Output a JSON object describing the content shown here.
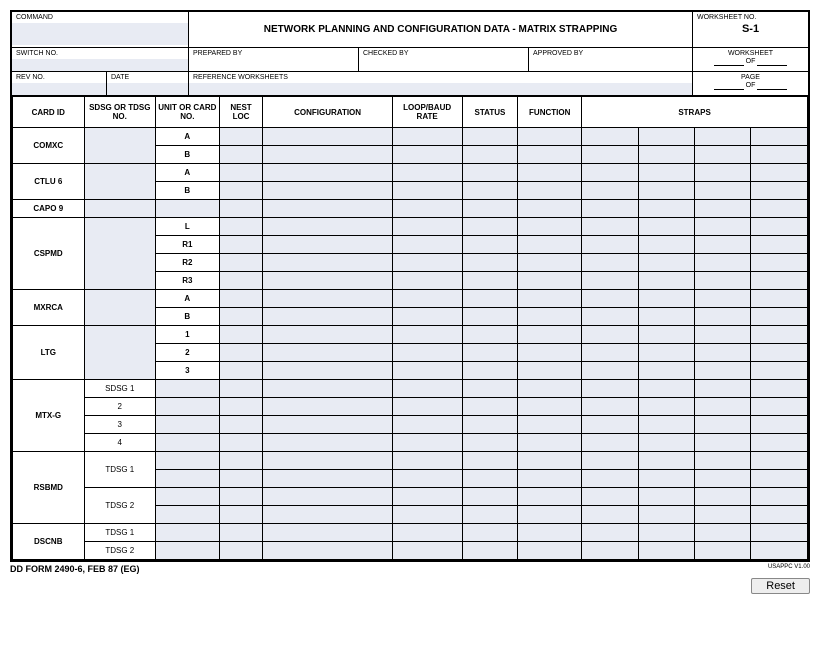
{
  "header": {
    "command_label": "COMMAND",
    "title": "NETWORK PLANNING AND CONFIGURATION DATA - MATRIX STRAPPING",
    "worksheet_no_label": "WORKSHEET NO.",
    "worksheet_no_value": "S-1",
    "switch_no_label": "SWITCH NO.",
    "prepared_by_label": "PREPARED BY",
    "checked_by_label": "CHECKED BY",
    "approved_by_label": "APPROVED BY",
    "worksheet_label": "WORKSHEET",
    "of_label": "OF",
    "rev_no_label": "REV NO.",
    "date_label": "DATE",
    "reference_label": "REFERENCE WORKSHEETS",
    "page_label": "PAGE"
  },
  "columns": {
    "card_id": "CARD ID",
    "sdsg": "SDSG OR TDSG NO.",
    "unit": "UNIT OR CARD NO.",
    "nest": "NEST LOC",
    "config": "CONFIGURATION",
    "rate": "LOOP/BAUD RATE",
    "status": "STATUS",
    "function": "FUNCTION",
    "straps": "STRAPS"
  },
  "rows": [
    {
      "card_id": "COMXC",
      "rowspan": 2,
      "sdsg": "",
      "sdsg_rowspan": 2,
      "unit": "A"
    },
    {
      "unit": "B"
    },
    {
      "card_id": "CTLU 6",
      "rowspan": 2,
      "sdsg": "",
      "sdsg_rowspan": 2,
      "unit": "A"
    },
    {
      "unit": "B"
    },
    {
      "card_id": "CAPO 9",
      "rowspan": 1,
      "sdsg": "",
      "sdsg_rowspan": 1,
      "unit": ""
    },
    {
      "card_id": "CSPMD",
      "rowspan": 4,
      "sdsg": "",
      "sdsg_rowspan": 4,
      "unit": "L"
    },
    {
      "unit": "R1"
    },
    {
      "unit": "R2"
    },
    {
      "unit": "R3"
    },
    {
      "card_id": "MXRCA",
      "rowspan": 2,
      "sdsg": "",
      "sdsg_rowspan": 2,
      "unit": "A"
    },
    {
      "unit": "B"
    },
    {
      "card_id": "LTG",
      "rowspan": 3,
      "sdsg": "",
      "sdsg_rowspan": 3,
      "unit": "1"
    },
    {
      "unit": "2"
    },
    {
      "unit": "3"
    },
    {
      "card_id": "MTX-G",
      "rowspan": 4,
      "sdsg": "SDSG 1",
      "sdsg_rowspan": 1,
      "unit": ""
    },
    {
      "sdsg": "2",
      "sdsg_rowspan": 1,
      "unit": ""
    },
    {
      "sdsg": "3",
      "sdsg_rowspan": 1,
      "unit": ""
    },
    {
      "sdsg": "4",
      "sdsg_rowspan": 1,
      "unit": ""
    },
    {
      "card_id": "RSBMD",
      "rowspan": 4,
      "sdsg": "TDSG 1",
      "sdsg_rowspan": 2,
      "unit": ""
    },
    {
      "unit": ""
    },
    {
      "sdsg": "TDSG 2",
      "sdsg_rowspan": 2,
      "unit": ""
    },
    {
      "unit": ""
    },
    {
      "card_id": "DSCNB",
      "rowspan": 2,
      "sdsg": "TDSG 1",
      "sdsg_rowspan": 1,
      "unit": ""
    },
    {
      "sdsg": "TDSG 2",
      "sdsg_rowspan": 1,
      "unit": ""
    }
  ],
  "footer": {
    "form_no": "DD FORM 2490-6, FEB 87 (EG)",
    "usappc": "USAPPC V1.00",
    "reset": "Reset"
  },
  "style": {
    "fill_color": "#e8ebf3",
    "border_color": "#000000",
    "page_bg": "#ffffff"
  }
}
